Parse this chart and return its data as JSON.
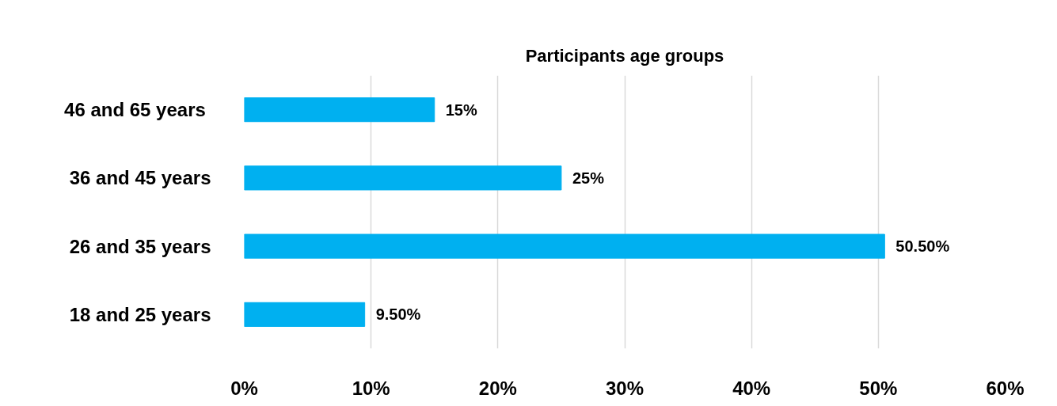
{
  "chart_data": {
    "type": "bar",
    "orientation": "horizontal",
    "title": "Participants age groups",
    "categories": [
      "46 and  65 years",
      "36 and 45 years",
      "26 and 35 years",
      "18 and 25 years"
    ],
    "values": [
      15,
      25,
      50.5,
      9.5
    ],
    "value_labels": [
      "15%",
      "25%",
      "50.50%",
      "9.50%"
    ],
    "color": "#00b0f0",
    "xlim": [
      0,
      60
    ],
    "xticks": [
      {
        "value": 0,
        "label": "0%"
      },
      {
        "value": 10,
        "label": "10%"
      },
      {
        "value": 20,
        "label": "20%"
      },
      {
        "value": 30,
        "label": "30%"
      },
      {
        "value": 40,
        "label": "40%"
      },
      {
        "value": 50,
        "label": "50%"
      },
      {
        "value": 60,
        "label": "60%"
      }
    ],
    "grid": "x"
  }
}
